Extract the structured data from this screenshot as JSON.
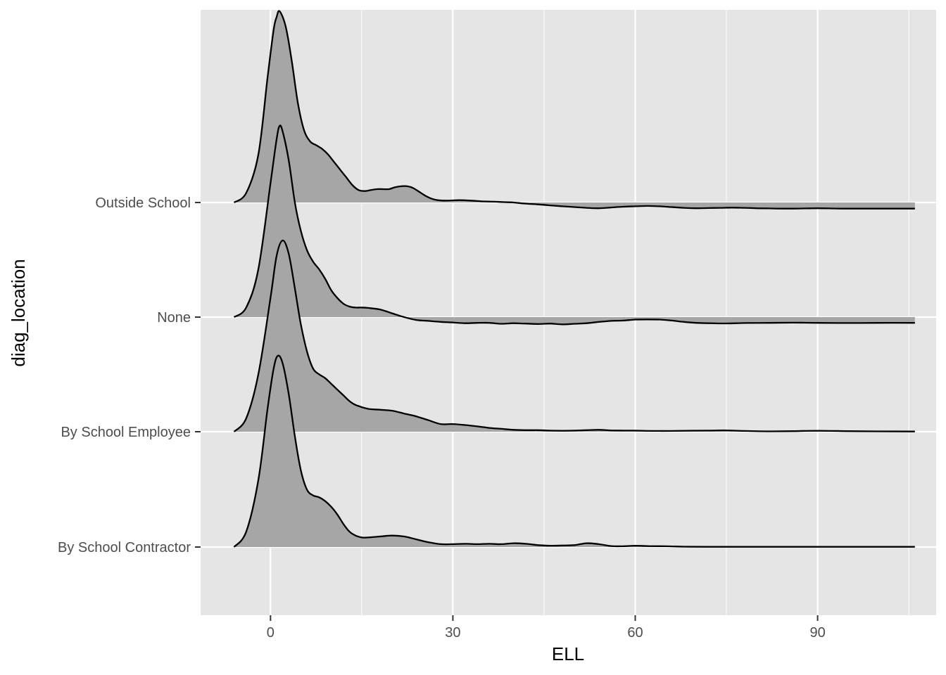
{
  "chart_data": {
    "type": "ridgeline",
    "xlabel": "ELL",
    "ylabel": "diag_location",
    "xlim": [
      -11.5,
      109.5
    ],
    "x_ticks": [
      0,
      30,
      60,
      90
    ],
    "categories": [
      "By School Contractor",
      "By School Employee",
      "None",
      "Outside School"
    ],
    "grid": true,
    "colors": {
      "panel": "#e5e5e5",
      "grid": "#ffffff",
      "fill": "#a6a6a6",
      "line": "#000000",
      "text": "#4d4d4d"
    },
    "series": [
      {
        "name": "By School Contractor",
        "x": [
          -6,
          -4,
          -2,
          -0.5,
          0.5,
          1.2,
          2,
          3,
          4,
          5,
          6,
          7,
          8,
          9,
          10,
          11,
          12,
          13,
          14,
          15,
          16,
          18,
          20,
          22,
          24,
          26,
          28,
          30,
          32,
          34,
          36,
          38,
          40,
          42,
          44,
          46,
          48,
          50,
          52,
          54,
          56,
          58,
          60,
          62,
          65,
          68,
          72,
          80,
          90,
          100,
          106
        ],
        "y": [
          0.0,
          0.08,
          0.35,
          0.72,
          0.93,
          1.0,
          0.96,
          0.8,
          0.58,
          0.4,
          0.3,
          0.27,
          0.26,
          0.24,
          0.21,
          0.17,
          0.12,
          0.08,
          0.06,
          0.05,
          0.05,
          0.055,
          0.06,
          0.055,
          0.04,
          0.025,
          0.015,
          0.015,
          0.017,
          0.015,
          0.017,
          0.015,
          0.02,
          0.017,
          0.01,
          0.007,
          0.008,
          0.01,
          0.02,
          0.015,
          0.005,
          0.004,
          0.007,
          0.005,
          0.004,
          0.002,
          0.001,
          0.001,
          0.001,
          0.001,
          0.001
        ]
      },
      {
        "name": "By School Employee",
        "x": [
          -6,
          -4,
          -2,
          0,
          1,
          2,
          3,
          4,
          5,
          6,
          7,
          8,
          9,
          10,
          11,
          12,
          13,
          14,
          16,
          18,
          20,
          22,
          24,
          26,
          28,
          30,
          32,
          34,
          36,
          38,
          40,
          42,
          44,
          46,
          48,
          50,
          52,
          54,
          56,
          58,
          60,
          64,
          68,
          72,
          75,
          78,
          82,
          86,
          90,
          95,
          100,
          106
        ],
        "y": [
          0.0,
          0.07,
          0.3,
          0.7,
          0.92,
          1.0,
          0.93,
          0.75,
          0.56,
          0.42,
          0.33,
          0.3,
          0.28,
          0.25,
          0.22,
          0.19,
          0.16,
          0.14,
          0.12,
          0.115,
          0.11,
          0.095,
          0.08,
          0.06,
          0.04,
          0.04,
          0.035,
          0.028,
          0.02,
          0.015,
          0.01,
          0.008,
          0.008,
          0.006,
          0.005,
          0.006,
          0.008,
          0.01,
          0.007,
          0.006,
          0.006,
          0.004,
          0.005,
          0.006,
          0.007,
          0.004,
          0.002,
          0.003,
          0.005,
          0.003,
          0.002,
          0.001
        ]
      },
      {
        "name": "None",
        "x": [
          -6,
          -4,
          -2,
          0,
          1,
          1.5,
          2,
          3,
          4,
          5,
          6,
          7,
          8,
          9,
          10,
          11,
          12,
          13,
          14,
          15,
          16,
          18,
          20,
          22,
          24,
          26,
          28,
          30,
          32,
          34,
          36,
          38,
          40,
          42,
          44,
          46,
          48,
          50,
          52,
          54,
          56,
          58,
          60,
          62,
          64,
          66,
          68,
          70,
          72,
          75,
          78,
          82,
          86,
          90,
          95,
          100,
          106
        ],
        "y": [
          0.0,
          0.05,
          0.25,
          0.7,
          0.93,
          1.0,
          0.97,
          0.82,
          0.6,
          0.45,
          0.35,
          0.29,
          0.25,
          0.2,
          0.14,
          0.1,
          0.07,
          0.055,
          0.05,
          0.05,
          0.048,
          0.04,
          0.02,
          0.0,
          -0.015,
          -0.02,
          -0.025,
          -0.028,
          -0.032,
          -0.03,
          -0.03,
          -0.035,
          -0.032,
          -0.034,
          -0.036,
          -0.034,
          -0.038,
          -0.035,
          -0.032,
          -0.025,
          -0.02,
          -0.018,
          -0.013,
          -0.012,
          -0.013,
          -0.018,
          -0.025,
          -0.03,
          -0.032,
          -0.033,
          -0.031,
          -0.03,
          -0.029,
          -0.03,
          -0.031,
          -0.03,
          -0.03
        ]
      },
      {
        "name": "Outside School",
        "x": [
          -6,
          -4,
          -2,
          -0.5,
          0.5,
          1,
          1.5,
          2.5,
          3.5,
          4.5,
          5.5,
          6.5,
          7.5,
          8.5,
          9.5,
          10.5,
          11.5,
          12.5,
          13.5,
          14.5,
          15.5,
          16.5,
          17.5,
          18.5,
          19.5,
          20.5,
          21.5,
          22.5,
          23.5,
          24.5,
          25.5,
          26.5,
          27.5,
          29,
          31,
          33,
          35,
          37,
          38.5,
          40,
          42,
          44,
          46,
          48,
          50,
          52,
          54,
          56,
          58,
          60,
          62,
          64,
          66,
          68,
          70,
          72,
          74,
          76,
          78,
          80,
          82,
          84,
          86,
          88,
          90,
          92,
          94,
          96,
          98,
          100,
          102,
          104,
          106
        ],
        "y": [
          0.0,
          0.05,
          0.25,
          0.65,
          0.9,
          0.97,
          1.0,
          0.92,
          0.74,
          0.52,
          0.38,
          0.32,
          0.3,
          0.28,
          0.25,
          0.21,
          0.17,
          0.13,
          0.09,
          0.065,
          0.06,
          0.065,
          0.07,
          0.07,
          0.07,
          0.08,
          0.085,
          0.085,
          0.075,
          0.055,
          0.035,
          0.02,
          0.012,
          0.01,
          0.012,
          0.01,
          0.006,
          0.004,
          0.002,
          0.0,
          -0.006,
          -0.01,
          -0.015,
          -0.02,
          -0.024,
          -0.028,
          -0.03,
          -0.026,
          -0.022,
          -0.02,
          -0.018,
          -0.02,
          -0.024,
          -0.028,
          -0.03,
          -0.029,
          -0.028,
          -0.027,
          -0.028,
          -0.03,
          -0.031,
          -0.032,
          -0.032,
          -0.031,
          -0.03,
          -0.031,
          -0.032,
          -0.032,
          -0.032,
          -0.032,
          -0.032,
          -0.032,
          -0.032
        ]
      }
    ]
  }
}
